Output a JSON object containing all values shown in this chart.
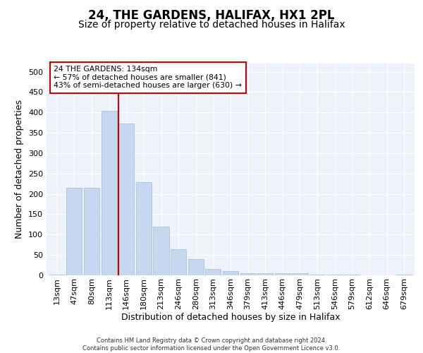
{
  "title": "24, THE GARDENS, HALIFAX, HX1 2PL",
  "subtitle": "Size of property relative to detached houses in Halifax",
  "xlabel": "Distribution of detached houses by size in Halifax",
  "ylabel": "Number of detached properties",
  "categories": [
    "13sqm",
    "47sqm",
    "80sqm",
    "113sqm",
    "146sqm",
    "180sqm",
    "213sqm",
    "246sqm",
    "280sqm",
    "313sqm",
    "346sqm",
    "379sqm",
    "413sqm",
    "446sqm",
    "479sqm",
    "513sqm",
    "546sqm",
    "579sqm",
    "612sqm",
    "646sqm",
    "679sqm"
  ],
  "values": [
    2,
    215,
    215,
    403,
    373,
    228,
    119,
    65,
    40,
    16,
    11,
    5,
    5,
    5,
    6,
    2,
    2,
    1,
    0,
    0,
    2
  ],
  "bar_color": "#c5d8f0",
  "bar_edge_color": "#a0bbdb",
  "vline_color": "#cc0000",
  "property_label": "24 THE GARDENS: 134sqm",
  "annotation_line1": "← 57% of detached houses are smaller (841)",
  "annotation_line2": "43% of semi-detached houses are larger (630) →",
  "annotation_box_color": "#cc0000",
  "annotation_bg": "#ffffff",
  "ylim": [
    0,
    520
  ],
  "yticks": [
    0,
    50,
    100,
    150,
    200,
    250,
    300,
    350,
    400,
    450,
    500
  ],
  "footnote1": "Contains HM Land Registry data © Crown copyright and database right 2024.",
  "footnote2": "Contains public sector information licensed under the Open Government Licence v3.0.",
  "bg_color": "#edf2fb",
  "grid_color": "#ffffff",
  "title_fontsize": 12,
  "subtitle_fontsize": 10,
  "tick_fontsize": 8,
  "ylabel_fontsize": 9,
  "xlabel_fontsize": 9
}
